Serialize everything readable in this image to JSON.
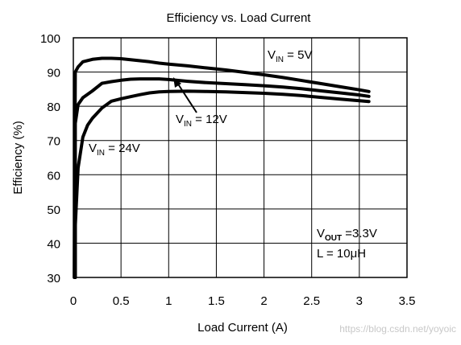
{
  "chart_data": {
    "type": "line",
    "title": "Efficiency vs. Load Current",
    "xlabel": "Load Current (A)",
    "ylabel": "Efficiency (%)",
    "xlim": [
      0,
      3.5
    ],
    "ylim": [
      30,
      100
    ],
    "x_ticks": [
      "0",
      "0.5",
      "1",
      "1.5",
      "2",
      "2.5",
      "3",
      "3.5"
    ],
    "y_ticks": [
      "30",
      "40",
      "50",
      "60",
      "70",
      "80",
      "90",
      "100"
    ],
    "grid": true,
    "series": [
      {
        "x": [
          0.01,
          0.02,
          0.05,
          0.1,
          0.2,
          0.3,
          0.4,
          0.5,
          0.6,
          0.7,
          0.8,
          0.9,
          1.0,
          1.2,
          1.4,
          1.6,
          1.8,
          2.0,
          2.2,
          2.4,
          2.6,
          2.8,
          3.0,
          3.1
        ],
        "values": [
          30,
          90,
          91.5,
          93,
          93.7,
          94,
          94,
          93.9,
          93.6,
          93.3,
          93.0,
          92.6,
          92.3,
          91.8,
          91.2,
          90.6,
          89.9,
          89.2,
          88.4,
          87.5,
          86.6,
          85.7,
          84.8,
          84.3
        ]
      },
      {
        "x": [
          0.02,
          0.05,
          0.1,
          0.2,
          0.3,
          0.4,
          0.5,
          0.6,
          0.7,
          0.8,
          0.9,
          1.0,
          1.2,
          1.4,
          1.6,
          1.8,
          2.0,
          2.2,
          2.4,
          2.6,
          2.8,
          3.0,
          3.1
        ],
        "values": [
          75,
          80.5,
          82.5,
          84.5,
          86.7,
          87.2,
          87.6,
          87.9,
          88.0,
          88.0,
          88.0,
          87.8,
          87.3,
          86.9,
          86.6,
          86.3,
          86.0,
          85.6,
          85.1,
          84.5,
          83.9,
          83.3,
          82.9
        ]
      },
      {
        "x": [
          0.02,
          0.05,
          0.1,
          0.15,
          0.2,
          0.3,
          0.4,
          0.5,
          0.6,
          0.7,
          0.8,
          0.9,
          1.0,
          1.2,
          1.4,
          1.6,
          1.8,
          2.0,
          2.2,
          2.4,
          2.6,
          2.8,
          3.0,
          3.1
        ],
        "values": [
          45,
          62,
          71,
          74.5,
          76.5,
          79.5,
          81.5,
          82.2,
          82.8,
          83.4,
          83.9,
          84.2,
          84.3,
          84.4,
          84.3,
          84.2,
          84.0,
          83.8,
          83.5,
          83.1,
          82.6,
          82.1,
          81.6,
          81.4
        ]
      }
    ],
    "annotations": {
      "vin5": {
        "main": "V",
        "sub": "IN",
        "rest": " = 5V"
      },
      "vin12": {
        "main": "V",
        "sub": "IN",
        "rest": " = 12V"
      },
      "vin24": {
        "main": "V",
        "sub": "IN",
        "rest": " = 24V"
      },
      "vout": {
        "main": "V",
        "sub": "OUT",
        "rest": " =3.3V"
      },
      "inductor": "L = 10μH"
    }
  },
  "watermark": "https://blog.csdn.net/yoyoic"
}
